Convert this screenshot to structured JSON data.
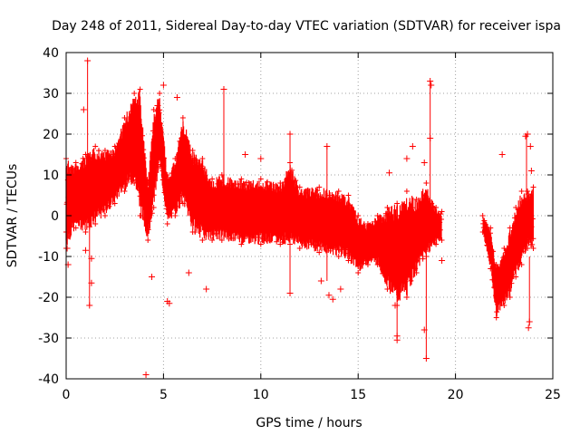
{
  "chart_data": {
    "type": "scatter",
    "title": "Day 248 of 2011, Sidereal Day-to-day VTEC variation (SDTVAR) for receiver ispa",
    "xlabel": "GPS time / hours",
    "ylabel": "SDTVAR / TECUs",
    "xlim": [
      0,
      25
    ],
    "ylim": [
      -40,
      40
    ],
    "xticks": [
      0,
      5,
      10,
      15,
      20,
      25
    ],
    "yticks": [
      -40,
      -30,
      -20,
      -10,
      0,
      10,
      20,
      30,
      40
    ],
    "grid": true,
    "marker": "+",
    "series_color": "#ff0000",
    "data_gap_hours": [
      19.3,
      21.4
    ],
    "band_envelope": [
      {
        "x": 0.0,
        "lo": -8,
        "hi": 14
      },
      {
        "x": 0.5,
        "lo": -3,
        "hi": 13
      },
      {
        "x": 1.0,
        "lo": -4,
        "hi": 15
      },
      {
        "x": 1.5,
        "lo": -2,
        "hi": 17
      },
      {
        "x": 2.0,
        "lo": 0,
        "hi": 16
      },
      {
        "x": 2.5,
        "lo": 3,
        "hi": 17
      },
      {
        "x": 3.0,
        "lo": 6,
        "hi": 24
      },
      {
        "x": 3.5,
        "lo": 8,
        "hi": 30
      },
      {
        "x": 3.8,
        "lo": 0,
        "hi": 31
      },
      {
        "x": 4.2,
        "lo": -6,
        "hi": 8
      },
      {
        "x": 4.5,
        "lo": 2,
        "hi": 26
      },
      {
        "x": 4.8,
        "lo": 12,
        "hi": 30
      },
      {
        "x": 5.2,
        "lo": -2,
        "hi": 10
      },
      {
        "x": 5.6,
        "lo": 0,
        "hi": 14
      },
      {
        "x": 6.0,
        "lo": 3,
        "hi": 24
      },
      {
        "x": 6.5,
        "lo": -4,
        "hi": 16
      },
      {
        "x": 7.0,
        "lo": -6,
        "hi": 14
      },
      {
        "x": 7.5,
        "lo": -6,
        "hi": 9
      },
      {
        "x": 8.0,
        "lo": -6,
        "hi": 10
      },
      {
        "x": 9.0,
        "lo": -7,
        "hi": 9
      },
      {
        "x": 10.0,
        "lo": -7,
        "hi": 9
      },
      {
        "x": 11.0,
        "lo": -7,
        "hi": 8
      },
      {
        "x": 11.5,
        "lo": -7,
        "hi": 13
      },
      {
        "x": 12.0,
        "lo": -8,
        "hi": 7
      },
      {
        "x": 13.0,
        "lo": -9,
        "hi": 7
      },
      {
        "x": 14.0,
        "lo": -10,
        "hi": 6
      },
      {
        "x": 14.5,
        "lo": -11,
        "hi": 5
      },
      {
        "x": 15.0,
        "lo": -14,
        "hi": 0
      },
      {
        "x": 15.5,
        "lo": -12,
        "hi": -2
      },
      {
        "x": 16.0,
        "lo": -12,
        "hi": 0
      },
      {
        "x": 16.5,
        "lo": -18,
        "hi": 2
      },
      {
        "x": 17.0,
        "lo": -22,
        "hi": 3
      },
      {
        "x": 17.5,
        "lo": -20,
        "hi": 6
      },
      {
        "x": 18.0,
        "lo": -14,
        "hi": 4
      },
      {
        "x": 18.5,
        "lo": -10,
        "hi": 8
      },
      {
        "x": 19.0,
        "lo": -7,
        "hi": 2
      },
      {
        "x": 19.3,
        "lo": -6,
        "hi": 1
      },
      {
        "x": 21.4,
        "lo": -4,
        "hi": 0
      },
      {
        "x": 21.8,
        "lo": -13,
        "hi": -3
      },
      {
        "x": 22.1,
        "lo": -25,
        "hi": -12
      },
      {
        "x": 22.5,
        "lo": -22,
        "hi": -8
      },
      {
        "x": 22.8,
        "lo": -20,
        "hi": -3
      },
      {
        "x": 23.1,
        "lo": -15,
        "hi": 2
      },
      {
        "x": 23.4,
        "lo": -12,
        "hi": 6
      },
      {
        "x": 23.7,
        "lo": -8,
        "hi": 6
      },
      {
        "x": 24.0,
        "lo": -8,
        "hi": 7
      }
    ],
    "outliers": [
      {
        "x": 1.1,
        "y": 38
      },
      {
        "x": 0.9,
        "y": 26
      },
      {
        "x": 1.2,
        "y": -22
      },
      {
        "x": 1.3,
        "y": -16.5
      },
      {
        "x": 1.0,
        "y": -8.5
      },
      {
        "x": 1.3,
        "y": -10.5
      },
      {
        "x": 0.1,
        "y": -12
      },
      {
        "x": 0.05,
        "y": -8
      },
      {
        "x": 4.1,
        "y": -39
      },
      {
        "x": 4.4,
        "y": -15
      },
      {
        "x": 5.2,
        "y": -21
      },
      {
        "x": 5.3,
        "y": -21.5
      },
      {
        "x": 6.3,
        "y": -14
      },
      {
        "x": 7.2,
        "y": -18
      },
      {
        "x": 5.0,
        "y": 32
      },
      {
        "x": 5.7,
        "y": 29
      },
      {
        "x": 4.7,
        "y": 27
      },
      {
        "x": 8.1,
        "y": 31
      },
      {
        "x": 9.2,
        "y": 15
      },
      {
        "x": 10.0,
        "y": 14
      },
      {
        "x": 11.5,
        "y": 20
      },
      {
        "x": 11.5,
        "y": -19
      },
      {
        "x": 13.4,
        "y": 17
      },
      {
        "x": 13.5,
        "y": -19.5
      },
      {
        "x": 13.7,
        "y": -20.5
      },
      {
        "x": 14.1,
        "y": -18
      },
      {
        "x": 13.1,
        "y": -16
      },
      {
        "x": 14.8,
        "y": -10
      },
      {
        "x": 17.0,
        "y": -30.5
      },
      {
        "x": 17.0,
        "y": -29.5
      },
      {
        "x": 16.9,
        "y": -22
      },
      {
        "x": 18.4,
        "y": -28
      },
      {
        "x": 18.5,
        "y": -35
      },
      {
        "x": 17.8,
        "y": 17
      },
      {
        "x": 18.4,
        "y": 13
      },
      {
        "x": 18.7,
        "y": 33
      },
      {
        "x": 18.75,
        "y": 32
      },
      {
        "x": 18.7,
        "y": 19
      },
      {
        "x": 17.5,
        "y": 14
      },
      {
        "x": 16.6,
        "y": 10.5
      },
      {
        "x": 19.3,
        "y": -11
      },
      {
        "x": 22.4,
        "y": 15
      },
      {
        "x": 23.6,
        "y": 19.5
      },
      {
        "x": 23.7,
        "y": 20
      },
      {
        "x": 23.85,
        "y": 17
      },
      {
        "x": 23.9,
        "y": 11
      },
      {
        "x": 23.8,
        "y": -26
      },
      {
        "x": 23.75,
        "y": -27.5
      }
    ],
    "spikes": [
      {
        "x": 1.1,
        "lo": 5,
        "hi": 38
      },
      {
        "x": 1.2,
        "lo": -22,
        "hi": 0
      },
      {
        "x": 8.1,
        "lo": 2,
        "hi": 31
      },
      {
        "x": 11.5,
        "lo": -19,
        "hi": 20
      },
      {
        "x": 13.4,
        "lo": -16,
        "hi": 17
      },
      {
        "x": 17.0,
        "lo": -30,
        "hi": -5
      },
      {
        "x": 18.7,
        "lo": -4,
        "hi": 33
      },
      {
        "x": 18.5,
        "lo": -35,
        "hi": -5
      },
      {
        "x": 23.8,
        "lo": -27,
        "hi": -10
      },
      {
        "x": 23.65,
        "lo": 2,
        "hi": 20
      }
    ]
  }
}
